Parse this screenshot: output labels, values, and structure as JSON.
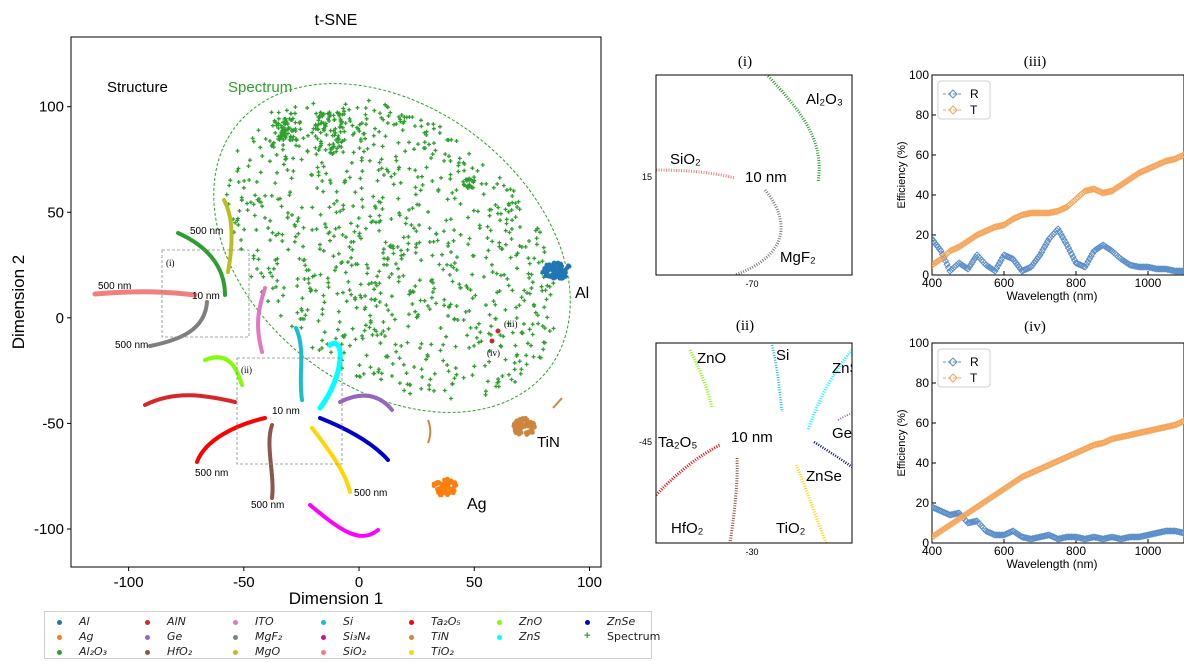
{
  "chart_data": [
    {
      "type": "scatter",
      "title": "t-SNE",
      "xlabel": "Dimension 1",
      "ylabel": "Dimension 2",
      "xlim": [
        -125,
        105
      ],
      "ylim": [
        -118,
        133
      ],
      "xticks": [
        -100,
        -50,
        0,
        50,
        100
      ],
      "yticks": [
        -100,
        -50,
        0,
        50,
        100
      ],
      "annotations": {
        "structure": "Structure",
        "spectrum": "Spectrum",
        "al": "Al",
        "tin": "TiN",
        "ag": "Ag",
        "nm10_a": "10 nm",
        "nm10_b": "10 nm",
        "nm500_a": "500 nm",
        "nm500_b": "500 nm",
        "nm500_c": "500 nm",
        "nm500_d": "500 nm",
        "nm500_e": "500 nm",
        "nm500_f": "500 nm",
        "box_i": "(i)",
        "box_ii": "(ii)",
        "pt_iii": "(iii)",
        "pt_iv": "(iv)"
      },
      "legend": [
        {
          "label": "Al",
          "color": "#1f77b4"
        },
        {
          "label": "AlN",
          "color": "#d62728"
        },
        {
          "label": "ITO",
          "color": "#e377c2"
        },
        {
          "label": "Si",
          "color": "#17becf"
        },
        {
          "label": "Ta₂O₅",
          "color": "#ff0000"
        },
        {
          "label": "ZnO",
          "color": "#7fff00"
        },
        {
          "label": "ZnSe",
          "color": "#0000cd"
        },
        {
          "label": "Ag",
          "color": "#ff7f0e"
        },
        {
          "label": "Ge",
          "color": "#9467bd"
        },
        {
          "label": "MgF₂",
          "color": "#7f7f7f"
        },
        {
          "label": "Si₃N₄",
          "color": "#c71585"
        },
        {
          "label": "TiN",
          "color": "#cd853f"
        },
        {
          "label": "ZnS",
          "color": "#00ffff"
        },
        {
          "label": "Spectrum",
          "color": "#2ca02c"
        },
        {
          "label": "Al₂O₃",
          "color": "#2ca02c"
        },
        {
          "label": "HfO₂",
          "color": "#8c564b"
        },
        {
          "label": "MgO",
          "color": "#bcbd22"
        },
        {
          "label": "SiO₂",
          "color": "#f08080"
        },
        {
          "label": "TiO₂",
          "color": "#ffd700"
        }
      ]
    },
    {
      "type": "scatter",
      "title": "(i)",
      "xtick": "-70",
      "ytick": "15",
      "labels": {
        "al2o3": "Al₂O₃",
        "sio2": "SiO₂",
        "mgf2": "MgF₂",
        "center": "10 nm"
      }
    },
    {
      "type": "scatter",
      "title": "(ii)",
      "xtick": "-30",
      "ytick": "-45",
      "labels": {
        "zno": "ZnO",
        "si": "Si",
        "zns": "ZnS",
        "ta2o5": "Ta₂O₅",
        "ge": "Ge",
        "znse": "ZnSe",
        "hfo2": "HfO₂",
        "tio2": "TiO₂",
        "center": "10 nm"
      }
    },
    {
      "type": "line",
      "title": "(iii)",
      "xlabel": "Wavelength (nm)",
      "ylabel": "Efficiency (%)",
      "xlim": [
        400,
        1100
      ],
      "ylim": [
        0,
        100
      ],
      "xticks": [
        400,
        600,
        800,
        1000
      ],
      "yticks": [
        0,
        20,
        40,
        60,
        80,
        100
      ],
      "x": [
        400,
        425,
        450,
        475,
        500,
        525,
        550,
        575,
        600,
        625,
        650,
        675,
        700,
        725,
        750,
        775,
        800,
        825,
        850,
        875,
        900,
        925,
        950,
        975,
        1000,
        1025,
        1050,
        1075,
        1100
      ],
      "series": [
        {
          "name": "R",
          "color": "#5b8ec8",
          "values": [
            18,
            12,
            2,
            6,
            3,
            10,
            5,
            2,
            10,
            8,
            2,
            4,
            10,
            18,
            23,
            15,
            6,
            4,
            12,
            15,
            12,
            8,
            5,
            4,
            4,
            3,
            3,
            2,
            2
          ]
        },
        {
          "name": "T",
          "color": "#f5a65b",
          "values": [
            5,
            8,
            12,
            14,
            17,
            20,
            22,
            24,
            25,
            28,
            30,
            31,
            31,
            31,
            32,
            34,
            38,
            42,
            43,
            41,
            42,
            45,
            48,
            51,
            53,
            55,
            57,
            58,
            60
          ]
        }
      ]
    },
    {
      "type": "line",
      "title": "(iv)",
      "xlabel": "Wavelength (nm)",
      "ylabel": "Efficiency (%)",
      "xlim": [
        400,
        1100
      ],
      "ylim": [
        0,
        100
      ],
      "xticks": [
        400,
        600,
        800,
        1000
      ],
      "yticks": [
        0,
        20,
        40,
        60,
        80,
        100
      ],
      "x": [
        400,
        425,
        450,
        475,
        500,
        525,
        550,
        575,
        600,
        625,
        650,
        675,
        700,
        725,
        750,
        775,
        800,
        825,
        850,
        875,
        900,
        925,
        950,
        975,
        1000,
        1025,
        1050,
        1075,
        1100
      ],
      "series": [
        {
          "name": "R",
          "color": "#5b8ec8",
          "values": [
            18,
            16,
            14,
            15,
            10,
            11,
            6,
            4,
            4,
            6,
            3,
            2,
            3,
            4,
            2,
            3,
            3,
            2,
            3,
            2,
            3,
            2,
            3,
            3,
            4,
            5,
            6,
            6,
            5
          ]
        },
        {
          "name": "T",
          "color": "#f5a65b",
          "values": [
            3,
            6,
            9,
            12,
            15,
            18,
            21,
            24,
            27,
            30,
            33,
            35,
            37,
            39,
            41,
            43,
            45,
            47,
            49,
            50,
            52,
            53,
            54,
            55,
            56,
            57,
            58,
            59,
            61
          ]
        }
      ]
    }
  ]
}
